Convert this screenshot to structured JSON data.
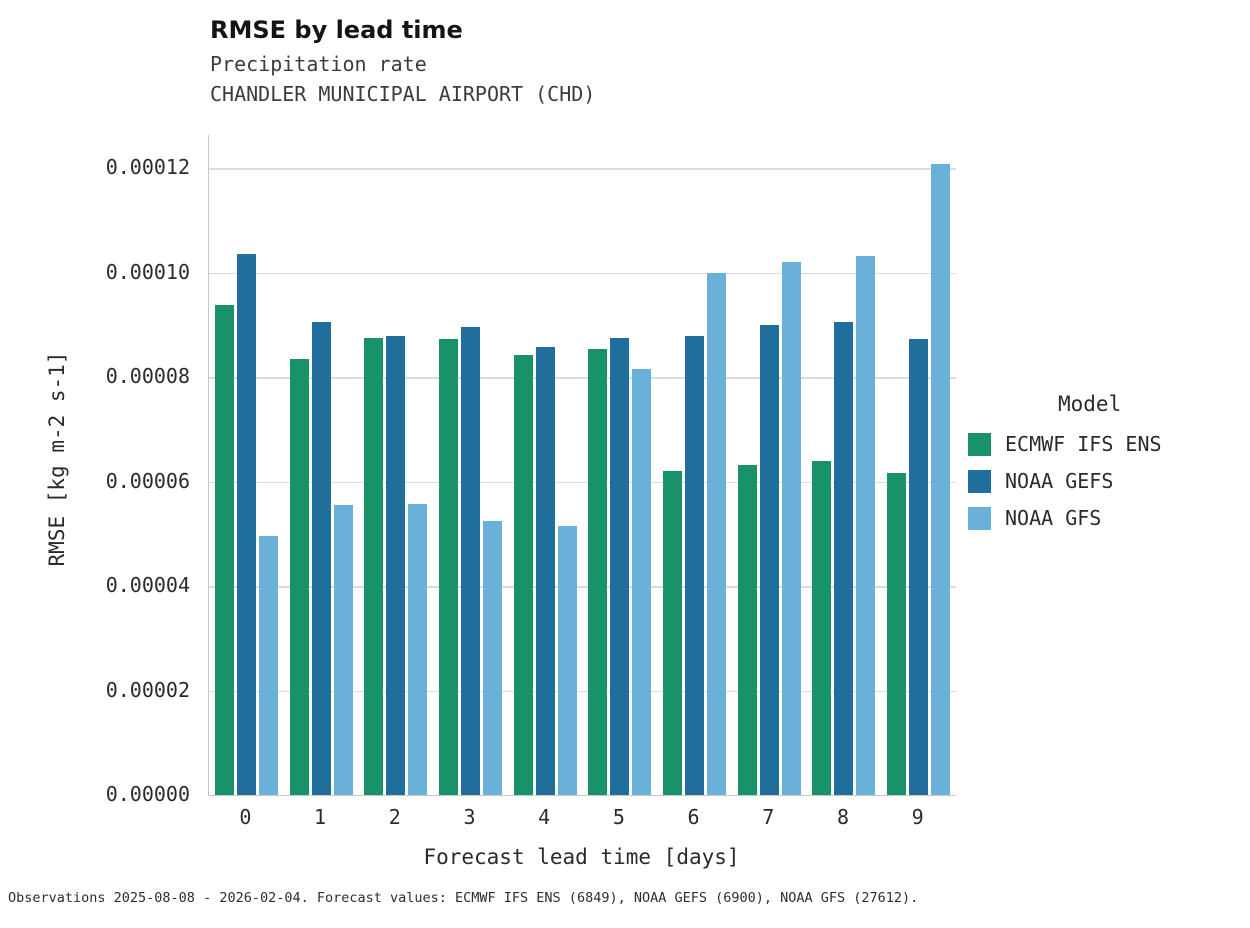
{
  "chart_data": {
    "type": "bar",
    "title": "RMSE by lead time",
    "subtitle": "Precipitation rate",
    "subtitle2": "CHANDLER MUNICIPAL AIRPORT (CHD)",
    "xlabel": "Forecast lead time [days]",
    "ylabel": "RMSE [kg m-2 s-1]",
    "categories": [
      "0",
      "1",
      "2",
      "3",
      "4",
      "5",
      "6",
      "7",
      "8",
      "9"
    ],
    "ylim": [
      0,
      0.00012
    ],
    "ytick_step": 2e-05,
    "ytick_labels": [
      "0.00000",
      "0.00002",
      "0.00004",
      "0.00006",
      "0.00008",
      "0.00010",
      "0.00012"
    ],
    "grid": true,
    "legend_title": "Model",
    "legend_position": "right",
    "series": [
      {
        "name": "ECMWF IFS ENS",
        "color": "#1a9268",
        "values": [
          9.38e-05,
          8.35e-05,
          8.75e-05,
          8.73e-05,
          8.42e-05,
          8.54e-05,
          6.2e-05,
          6.32e-05,
          6.4e-05,
          6.17e-05
        ]
      },
      {
        "name": "NOAA GEFS",
        "color": "#206e9c",
        "values": [
          0.0001035,
          9.05e-05,
          8.78e-05,
          8.95e-05,
          8.58e-05,
          8.75e-05,
          8.78e-05,
          9e-05,
          9.06e-05,
          8.72e-05
        ]
      },
      {
        "name": "NOAA GFS",
        "color": "#69b1d8",
        "values": [
          4.95e-05,
          5.55e-05,
          5.57e-05,
          5.24e-05,
          5.14e-05,
          8.16e-05,
          0.0001,
          0.0001021,
          0.0001031,
          0.0001208
        ]
      }
    ],
    "footnote": "Observations 2025-08-08 - 2026-02-04. Forecast values: ECMWF IFS ENS (6849), NOAA GEFS (6900), NOAA GFS (27612)."
  }
}
